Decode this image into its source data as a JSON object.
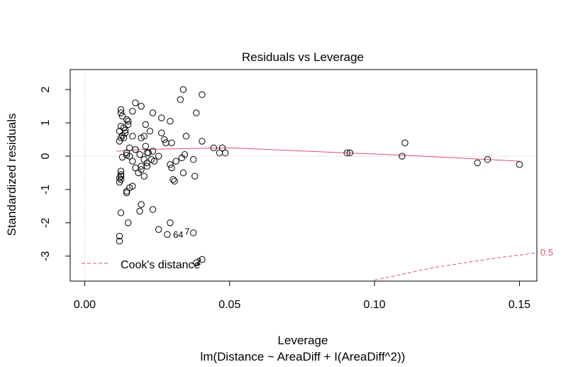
{
  "chart_data": {
    "type": "scatter",
    "title": "Residuals vs Leverage",
    "xlabel": "Leverage",
    "subtitle": "lm(Distance ~ AreaDiff + I(AreaDiff^2))",
    "ylabel": "Standardized residuals",
    "xlim": [
      -0.005,
      0.156
    ],
    "ylim": [
      -3.75,
      2.6
    ],
    "x_ticks": [
      0.0,
      0.05,
      0.1,
      0.15
    ],
    "x_tick_labels": [
      "0.00",
      "0.05",
      "0.10",
      "0.15"
    ],
    "y_ticks": [
      -3,
      -2,
      -1,
      0,
      1,
      2
    ],
    "y_tick_labels": [
      "-3",
      "-2",
      "-1",
      "0",
      "1",
      "2"
    ],
    "reference_lines": {
      "h": 0,
      "v": 0
    },
    "points": [
      [
        0.0125,
        1.4
      ],
      [
        0.0125,
        1.3
      ],
      [
        0.013,
        1.2
      ],
      [
        0.0125,
        0.9
      ],
      [
        0.015,
        0.95
      ],
      [
        0.0135,
        0.85
      ],
      [
        0.014,
        0.78
      ],
      [
        0.012,
        0.75
      ],
      [
        0.014,
        0.7
      ],
      [
        0.013,
        0.62
      ],
      [
        0.0125,
        0.55
      ],
      [
        0.0135,
        0.55
      ],
      [
        0.012,
        0.45
      ],
      [
        0.0145,
        0.1
      ],
      [
        0.0145,
        0.03
      ],
      [
        0.013,
        -0.03
      ],
      [
        0.0155,
        0.25
      ],
      [
        0.0155,
        0.0
      ],
      [
        0.0125,
        -0.45
      ],
      [
        0.0125,
        -0.55
      ],
      [
        0.0125,
        -0.6
      ],
      [
        0.012,
        -0.65
      ],
      [
        0.0125,
        -0.7
      ],
      [
        0.012,
        -0.78
      ],
      [
        0.0155,
        -0.95
      ],
      [
        0.0145,
        -1.05
      ],
      [
        0.0145,
        -1.1
      ],
      [
        0.0165,
        -0.9
      ],
      [
        0.0125,
        -1.7
      ],
      [
        0.015,
        -2.0
      ],
      [
        0.012,
        -2.4
      ],
      [
        0.012,
        -2.55
      ],
      [
        0.0145,
        1.1
      ],
      [
        0.015,
        1.05
      ],
      [
        0.0175,
        1.6
      ],
      [
        0.0165,
        1.35
      ],
      [
        0.0195,
        1.5
      ],
      [
        0.0165,
        0.6
      ],
      [
        0.0195,
        0.55
      ],
      [
        0.021,
        0.95
      ],
      [
        0.0205,
        0.6
      ],
      [
        0.0225,
        0.75
      ],
      [
        0.0235,
        1.3
      ],
      [
        0.0215,
        0.1
      ],
      [
        0.021,
        0.3
      ],
      [
        0.0235,
        0.15
      ],
      [
        0.019,
        0.05
      ],
      [
        0.0175,
        0.2
      ],
      [
        0.0165,
        -0.15
      ],
      [
        0.0175,
        -0.35
      ],
      [
        0.0185,
        -0.5
      ],
      [
        0.0195,
        -0.3
      ],
      [
        0.0195,
        -0.4
      ],
      [
        0.0205,
        -0.1
      ],
      [
        0.0215,
        -0.3
      ],
      [
        0.0215,
        -0.2
      ],
      [
        0.022,
        0.1
      ],
      [
        0.023,
        -0.1
      ],
      [
        0.024,
        -0.15
      ],
      [
        0.0205,
        -0.6
      ],
      [
        0.0195,
        -1.45
      ],
      [
        0.019,
        -1.65
      ],
      [
        0.0235,
        -1.6
      ],
      [
        0.0255,
        -2.2
      ],
      [
        0.0265,
        1.15
      ],
      [
        0.0265,
        0.7
      ],
      [
        0.028,
        0.4
      ],
      [
        0.0275,
        0.5
      ],
      [
        0.0255,
        0.0
      ],
      [
        0.0295,
        1.05
      ],
      [
        0.03,
        0.4
      ],
      [
        0.0295,
        -0.25
      ],
      [
        0.03,
        -0.35
      ],
      [
        0.0315,
        -0.15
      ],
      [
        0.031,
        -0.75
      ],
      [
        0.0305,
        -0.7
      ],
      [
        0.033,
        1.7
      ],
      [
        0.034,
        2.0
      ],
      [
        0.035,
        0.6
      ],
      [
        0.0335,
        -0.05
      ],
      [
        0.0345,
        0.05
      ],
      [
        0.034,
        -0.5
      ],
      [
        0.0375,
        -0.1
      ],
      [
        0.0385,
        1.3
      ],
      [
        0.038,
        -0.6
      ],
      [
        0.0405,
        1.85
      ],
      [
        0.0405,
        0.45
      ],
      [
        0.0445,
        0.25
      ],
      [
        0.0475,
        0.25
      ],
      [
        0.0465,
        0.1
      ],
      [
        0.0485,
        0.1
      ],
      [
        0.0295,
        -2.0
      ],
      [
        0.0285,
        -2.35
      ],
      [
        0.0375,
        -2.3
      ],
      [
        0.0385,
        -3.2
      ],
      [
        0.0405,
        -3.1
      ],
      [
        0.0905,
        0.1
      ],
      [
        0.0915,
        0.1
      ],
      [
        0.1105,
        0.4
      ],
      [
        0.1095,
        0.0
      ],
      [
        0.1355,
        -0.2
      ],
      [
        0.139,
        -0.1
      ],
      [
        0.15,
        -0.25
      ]
    ],
    "point_labels": [
      {
        "label": "64",
        "x": 0.0305,
        "y": -2.45
      },
      {
        "label": "7",
        "x": 0.0345,
        "y": -2.35
      },
      {
        "label": "2",
        "x": 0.0385,
        "y": -3.25
      }
    ],
    "smoother": {
      "color": "#DF536B",
      "x": [
        0.011,
        0.02,
        0.03,
        0.05,
        0.09,
        0.11,
        0.15
      ],
      "y": [
        0.15,
        0.2,
        0.22,
        0.25,
        0.1,
        0.03,
        -0.15
      ]
    },
    "cooks_distance": {
      "label": "Cook's distance",
      "color": "#DF536B",
      "contour_label": "0.5",
      "x": [
        0.1,
        0.12,
        0.14,
        0.156
      ],
      "y": [
        -3.72,
        -3.35,
        -3.08,
        -2.9
      ]
    },
    "legend_position": "bottom-left"
  }
}
